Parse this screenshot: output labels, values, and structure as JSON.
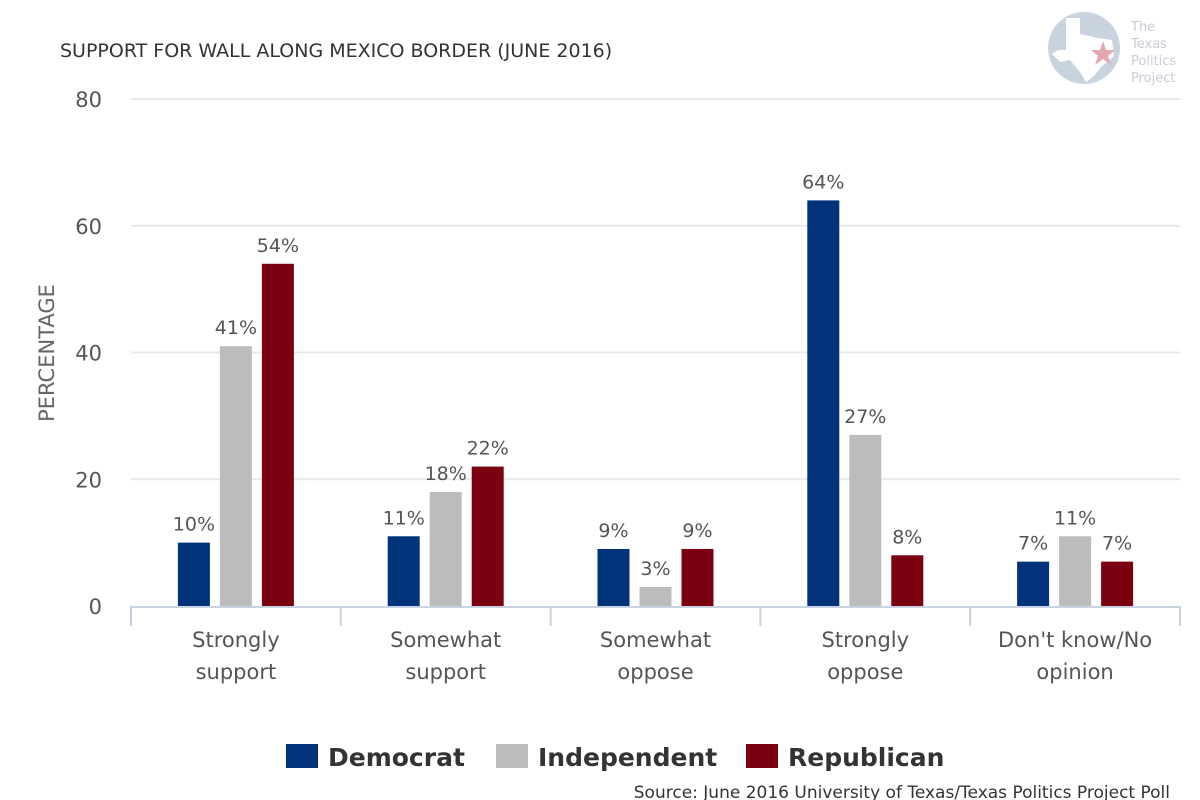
{
  "chart_data": {
    "type": "bar",
    "title": "SUPPORT FOR WALL ALONG MEXICO BORDER (JUNE 2016)",
    "xlabel": "",
    "ylabel": "PERCENTAGE",
    "ylim": [
      0,
      80
    ],
    "yticks": [
      0,
      20,
      40,
      60,
      80
    ],
    "grid": true,
    "legend_position": "bottom",
    "categories": [
      [
        "Strongly",
        "support"
      ],
      [
        "Somewhat",
        "support"
      ],
      [
        "Somewhat",
        "oppose"
      ],
      [
        "Strongly",
        "oppose"
      ],
      [
        "Don't know/No",
        "opinion"
      ]
    ],
    "series": [
      {
        "name": "Democrat",
        "color": "#00337a",
        "values": [
          10,
          11,
          9,
          64,
          7
        ],
        "labels": [
          "10%",
          "11%",
          "9%",
          "64%",
          "7%"
        ]
      },
      {
        "name": "Independent",
        "color": "#bcbcbc",
        "values": [
          41,
          18,
          3,
          27,
          11
        ],
        "labels": [
          "41%",
          "18%",
          "3%",
          "27%",
          "11%"
        ]
      },
      {
        "name": "Republican",
        "color": "#7b0010",
        "values": [
          54,
          22,
          9,
          8,
          7
        ],
        "labels": [
          "54%",
          "22%",
          "9%",
          "8%",
          "7%"
        ]
      }
    ],
    "source": "Source: June 2016 University of Texas/Texas Politics Project Poll"
  },
  "logo": {
    "icon": "texas-politics-project-logo-icon",
    "lines": [
      "The",
      "Texas",
      "Politics",
      "Project"
    ],
    "circle_color": "#c9d3e0",
    "star_color": "#e3a8ae"
  }
}
